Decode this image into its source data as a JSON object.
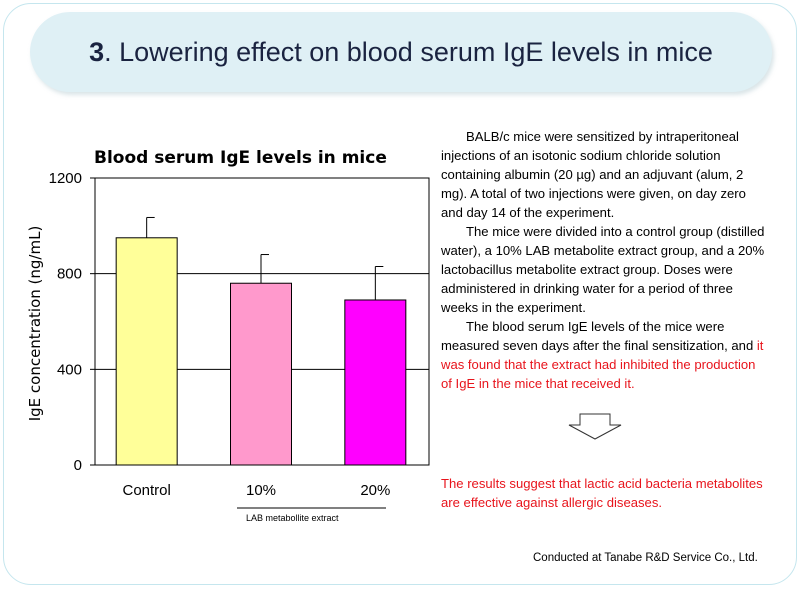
{
  "slide": {
    "number": "3",
    "title": ". Lowering effect on blood serum IgE levels in mice"
  },
  "chart_data": {
    "type": "bar",
    "title": "Blood serum IgE levels in mice",
    "ylabel": "IgE concentration (ng/mL)",
    "xlabel": "",
    "group_label": "LAB metabollite extract",
    "ylim": [
      0,
      1200
    ],
    "yticks": [
      0,
      400,
      800,
      1200
    ],
    "gridlines": [
      400,
      800
    ],
    "categories": [
      "Control",
      "10%",
      "20%"
    ],
    "values": [
      950,
      760,
      690
    ],
    "errors": [
      85,
      120,
      140
    ],
    "colors": [
      "#ffff99",
      "#ff99cc",
      "#ff00ff"
    ]
  },
  "description": {
    "para1": "BALB/c mice were sensitized by intraperitoneal injections of an isotonic sodium chloride solution containing albumin (20 µg) and an adjuvant (alum, 2 mg). A total of two injections were given, on day zero and day 14 of the experiment.",
    "para2": "The mice were divided into a control group (distilled water), a 10% LAB metabolite extract group, and a 20% lactobacillus metabolite extract group. Doses were administered in drinking water for a period of three weeks in the experiment.",
    "para3_black": "The blood serum IgE levels of the mice were measured seven days after the final sensitization, and ",
    "para3_red": "it was found that the extract had inhibited the production of IgE in the mice that received it."
  },
  "conclusion": "The results suggest that lactic acid bacteria metabolites are effective against allergic diseases.",
  "footer": "Conducted at Tanabe R&D Service Co., Ltd."
}
